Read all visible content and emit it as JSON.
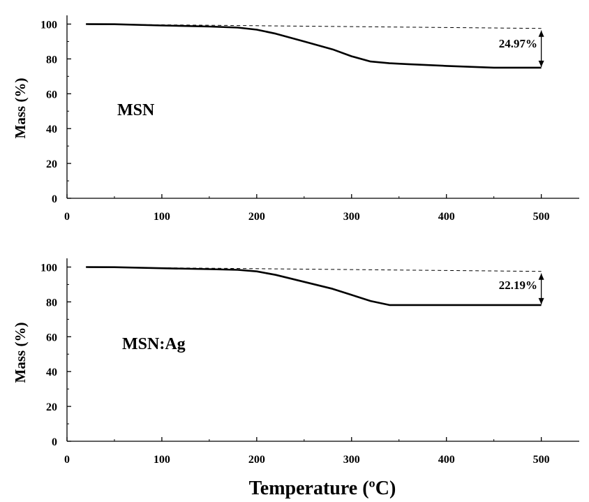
{
  "chart_data": [
    {
      "type": "line",
      "title": "",
      "sample_label": "MSN",
      "xlabel": "",
      "ylabel": "Mass (%)",
      "xlim": [
        0,
        540
      ],
      "ylim": [
        0,
        105
      ],
      "xticks": [
        0,
        100,
        200,
        300,
        400,
        500
      ],
      "yticks": [
        0,
        20,
        40,
        60,
        80,
        100
      ],
      "grid": false,
      "annotation": "24.97%",
      "series": [
        {
          "x": [
            20,
            50,
            100,
            150,
            180,
            200,
            220,
            250,
            280,
            300,
            320,
            340,
            360,
            400,
            450,
            500
          ],
          "y": [
            100,
            99.9,
            99.2,
            98.6,
            98.0,
            96.8,
            94.5,
            90.0,
            85.5,
            81.5,
            78.5,
            77.5,
            77.0,
            76.0,
            75.0,
            75.0
          ]
        },
        {
          "style": "dashed",
          "x": [
            20,
            500
          ],
          "y": [
            100,
            97.5
          ]
        }
      ]
    },
    {
      "type": "line",
      "title": "",
      "sample_label": "MSN:Ag",
      "xlabel": "Temperature (ºC)",
      "ylabel": "Mass (%)",
      "xlim": [
        0,
        540
      ],
      "ylim": [
        0,
        105
      ],
      "xticks": [
        0,
        100,
        200,
        300,
        400,
        500
      ],
      "yticks": [
        0,
        20,
        40,
        60,
        80,
        100
      ],
      "grid": false,
      "annotation": "22.19%",
      "series": [
        {
          "x": [
            20,
            50,
            100,
            150,
            180,
            200,
            220,
            250,
            280,
            300,
            320,
            340,
            360,
            400,
            450,
            500
          ],
          "y": [
            100,
            99.9,
            99.3,
            98.8,
            98.4,
            97.5,
            95.5,
            91.5,
            87.5,
            84.0,
            80.5,
            78.2,
            78.2,
            78.2,
            78.2,
            78.2
          ]
        },
        {
          "style": "dashed",
          "x": [
            20,
            500
          ],
          "y": [
            100,
            97.5
          ]
        }
      ]
    }
  ]
}
